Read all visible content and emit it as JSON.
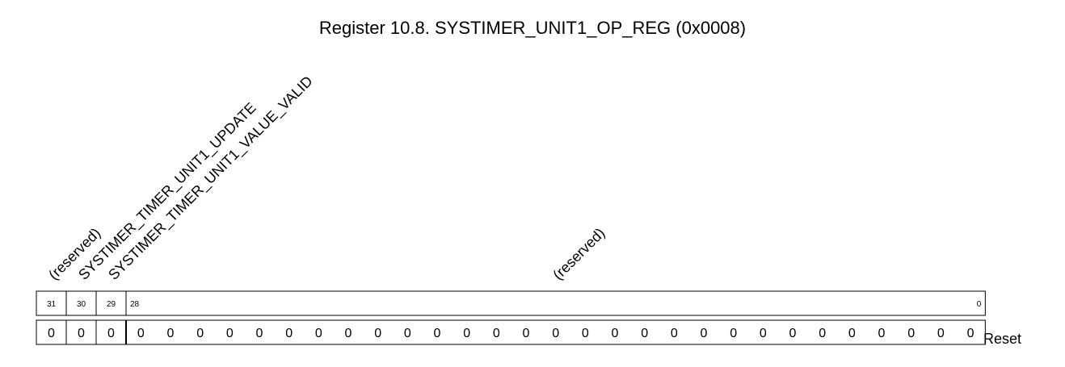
{
  "title": "Register 10.8. SYSTIMER_UNIT1_OP_REG (0x0008)",
  "fields": [
    {
      "name": "(reserved)",
      "msb": 31,
      "lsb": 31,
      "reset": [
        "0"
      ]
    },
    {
      "name": "SYSTIMER_TIMER_UNIT1_UPDATE",
      "msb": 30,
      "lsb": 30,
      "reset": [
        "0"
      ]
    },
    {
      "name": "SYSTIMER_TIMER_UNIT1_VALUE_VALID",
      "msb": 29,
      "lsb": 29,
      "reset": [
        "0"
      ]
    },
    {
      "name": "(reserved)",
      "msb": 28,
      "lsb": 0,
      "reset": [
        "0",
        "0",
        "0",
        "0",
        "0",
        "0",
        "0",
        "0",
        "0",
        "0",
        "0",
        "0",
        "0",
        "0",
        "0",
        "0",
        "0",
        "0",
        "0",
        "0",
        "0",
        "0",
        "0",
        "0",
        "0",
        "0",
        "0",
        "0",
        "0"
      ]
    }
  ],
  "bit_labels": [
    {
      "field": 0,
      "text": "31"
    },
    {
      "field": 1,
      "text": "30"
    },
    {
      "field": 2,
      "text": "29"
    },
    {
      "field": 3,
      "text": "28",
      "align": "left"
    },
    {
      "field": 3,
      "text": "0",
      "align": "right"
    }
  ],
  "reset_label": "Reset"
}
